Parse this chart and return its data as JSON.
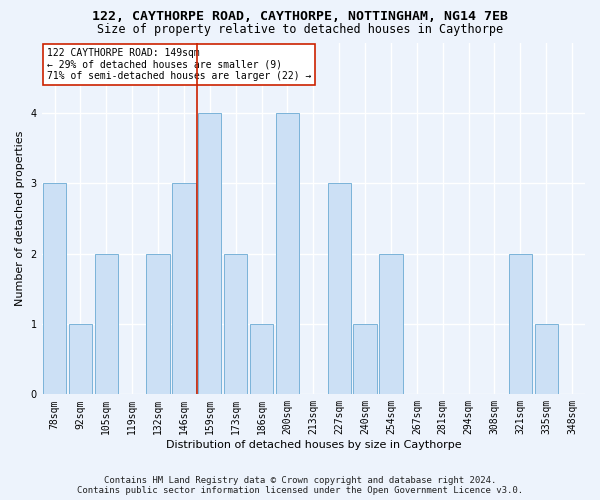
{
  "title1": "122, CAYTHORPE ROAD, CAYTHORPE, NOTTINGHAM, NG14 7EB",
  "title2": "Size of property relative to detached houses in Caythorpe",
  "xlabel": "Distribution of detached houses by size in Caythorpe",
  "ylabel": "Number of detached properties",
  "categories": [
    "78sqm",
    "92sqm",
    "105sqm",
    "119sqm",
    "132sqm",
    "146sqm",
    "159sqm",
    "173sqm",
    "186sqm",
    "200sqm",
    "213sqm",
    "227sqm",
    "240sqm",
    "254sqm",
    "267sqm",
    "281sqm",
    "294sqm",
    "308sqm",
    "321sqm",
    "335sqm",
    "348sqm"
  ],
  "values": [
    3,
    1,
    2,
    0,
    2,
    3,
    4,
    2,
    1,
    4,
    0,
    3,
    1,
    2,
    0,
    0,
    0,
    0,
    2,
    1,
    0
  ],
  "bar_color": "#cce0f5",
  "bar_edge_color": "#7ab3d9",
  "vline_x": 5.5,
  "vline_color": "#cc2200",
  "annotation_lines": [
    "122 CAYTHORPE ROAD: 149sqm",
    "← 29% of detached houses are smaller (9)",
    "71% of semi-detached houses are larger (22) →"
  ],
  "annotation_box_color": "white",
  "annotation_box_edge": "#cc2200",
  "ylim": [
    0,
    5
  ],
  "yticks": [
    0,
    1,
    2,
    3,
    4,
    5
  ],
  "footer_line1": "Contains HM Land Registry data © Crown copyright and database right 2024.",
  "footer_line2": "Contains public sector information licensed under the Open Government Licence v3.0.",
  "bg_color": "#edf3fc",
  "plot_bg_color": "#edf3fc",
  "grid_color": "#ffffff",
  "title1_fontsize": 9.5,
  "title2_fontsize": 8.5,
  "xlabel_fontsize": 8,
  "ylabel_fontsize": 8,
  "tick_fontsize": 7,
  "ann_fontsize": 7,
  "footer_fontsize": 6.5
}
